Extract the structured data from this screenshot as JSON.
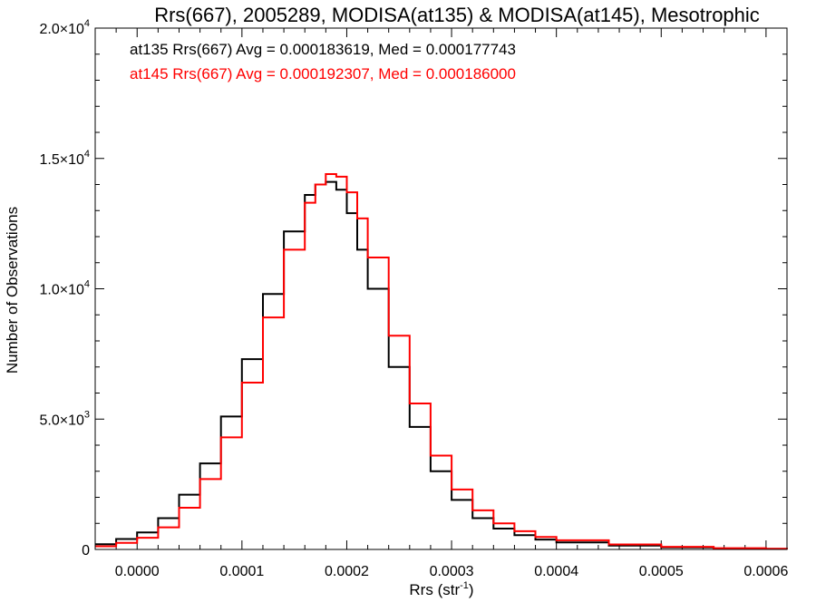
{
  "chart_data": {
    "type": "line",
    "style": "histogram-step",
    "title": "Rrs(667), 2005289, MODISA(at135) & MODISA(at145), Mesotrophic",
    "xlabel_main": "Rrs (str",
    "xlabel_sup": "-1",
    "xlabel_end": ")",
    "ylabel": "Number of Observations",
    "xlim": [
      -4e-05,
      0.00062
    ],
    "ylim": [
      0,
      20000
    ],
    "xticks": [
      0.0,
      0.0001,
      0.0002,
      0.0003,
      0.0004,
      0.0005,
      0.0006
    ],
    "xtick_labels": [
      "0.0000",
      "0.0001",
      "0.0002",
      "0.0003",
      "0.0004",
      "0.0005",
      "0.0006"
    ],
    "yticks": [
      0,
      5000,
      10000,
      15000,
      20000
    ],
    "ytick_labels": [
      {
        "base": "0",
        "exp": ""
      },
      {
        "base": "5.0×10",
        "exp": "3"
      },
      {
        "base": "1.0×10",
        "exp": "4"
      },
      {
        "base": "1.5×10",
        "exp": "4"
      },
      {
        "base": "2.0×10",
        "exp": "4"
      }
    ],
    "grid": false,
    "legend_position": "top-left",
    "series": [
      {
        "name": "at135 Rrs(667) Avg = 0.000183619, Med = 0.000177743",
        "color": "#000000",
        "x": [
          -4e-05,
          -2e-05,
          0.0,
          2e-05,
          4e-05,
          6e-05,
          8e-05,
          0.0001,
          0.00012,
          0.00014,
          0.00016,
          0.00017,
          0.00018,
          0.00019,
          0.0002,
          0.00021,
          0.00022,
          0.00024,
          0.00026,
          0.00028,
          0.0003,
          0.00032,
          0.00034,
          0.00036,
          0.00038,
          0.0004,
          0.00045,
          0.0005,
          0.00055,
          0.0006,
          0.00062
        ],
        "values": [
          200,
          400,
          650,
          1200,
          2100,
          3300,
          5100,
          7300,
          9800,
          12200,
          13600,
          14000,
          14100,
          13800,
          12900,
          11500,
          10000,
          7000,
          4700,
          3000,
          1900,
          1200,
          800,
          550,
          380,
          270,
          150,
          80,
          40,
          20,
          10
        ]
      },
      {
        "name": "at145 Rrs(667) Avg = 0.000192307, Med = 0.000186000",
        "color": "#ff0000",
        "x": [
          -4e-05,
          -2e-05,
          0.0,
          2e-05,
          4e-05,
          6e-05,
          8e-05,
          0.0001,
          0.00012,
          0.00014,
          0.00016,
          0.00017,
          0.00018,
          0.00019,
          0.0002,
          0.00021,
          0.00022,
          0.00024,
          0.00026,
          0.00028,
          0.0003,
          0.00032,
          0.00034,
          0.00036,
          0.00038,
          0.0004,
          0.00045,
          0.0005,
          0.00055,
          0.0006,
          0.00062
        ],
        "values": [
          120,
          250,
          450,
          850,
          1600,
          2700,
          4300,
          6400,
          8900,
          11500,
          13300,
          14000,
          14400,
          14300,
          13700,
          12700,
          11200,
          8200,
          5600,
          3600,
          2300,
          1500,
          1000,
          700,
          480,
          350,
          190,
          100,
          50,
          25,
          10
        ]
      }
    ]
  }
}
